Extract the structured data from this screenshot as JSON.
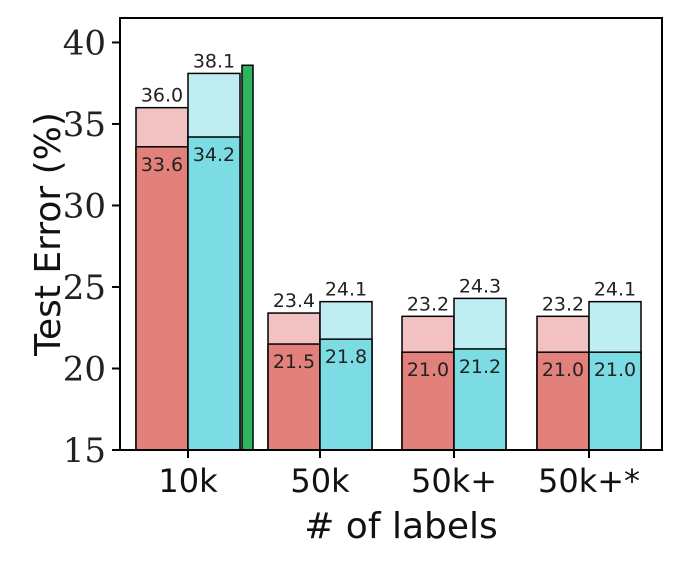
{
  "chart_data": {
    "type": "bar",
    "ylabel": "Test Error (%)",
    "xlabel": "# of labels",
    "ylim": [
      15,
      41.5
    ],
    "yticks": [
      15,
      20,
      25,
      30,
      35,
      40
    ],
    "ytick_labels": [
      "15",
      "20",
      "25",
      "30",
      "35",
      "40"
    ],
    "categories": [
      "10k",
      "50k",
      "50k+",
      "50k+*"
    ],
    "series": [
      {
        "color": "#e2807b",
        "light_color": "#f2c2c2",
        "upper_values": [
          36.0,
          23.4,
          23.2,
          23.2
        ],
        "lower_values": [
          33.6,
          21.5,
          21.0,
          21.0
        ],
        "upper_labels": [
          "36.0",
          "23.4",
          "23.2",
          "23.2"
        ],
        "lower_labels": [
          "33.6",
          "21.5",
          "21.0",
          "21.0"
        ]
      },
      {
        "color": "#7bdde3",
        "light_color": "#bfeef2",
        "upper_values": [
          38.1,
          24.1,
          24.3,
          24.1
        ],
        "lower_values": [
          34.2,
          21.8,
          21.2,
          21.0
        ],
        "upper_labels": [
          "38.1",
          "24.1",
          "24.3",
          "24.1"
        ],
        "lower_labels": [
          "34.2",
          "21.8",
          "21.2",
          "21.0"
        ]
      }
    ],
    "extra_bar": {
      "category": "10k",
      "value": 38.6,
      "color": "#2db55d"
    },
    "grid": false,
    "legend": "none"
  }
}
